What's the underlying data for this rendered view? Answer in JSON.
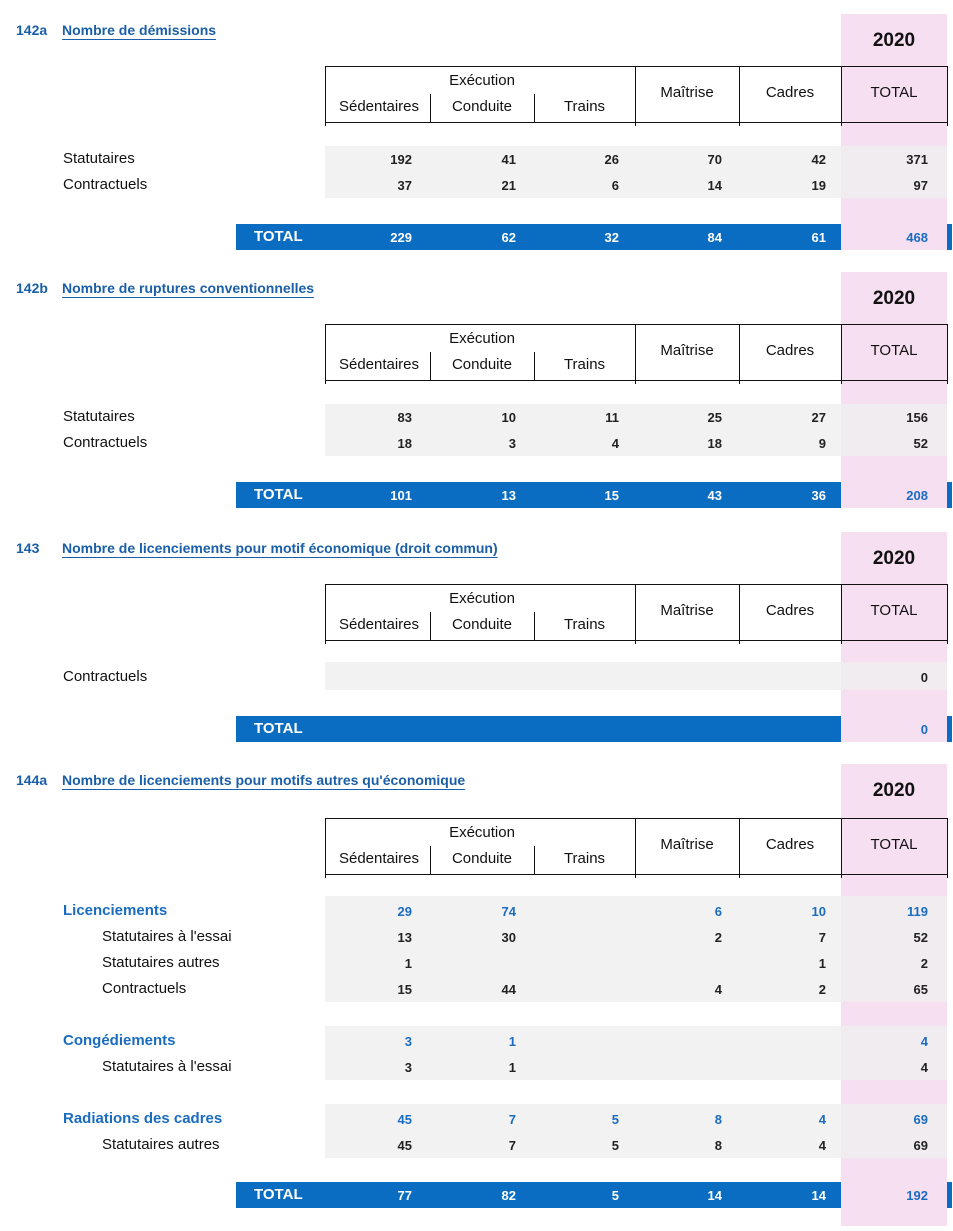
{
  "header_columns": {
    "execution": "Exécution",
    "sedentaires": "Sédentaires",
    "conduite": "Conduite",
    "trains": "Trains",
    "maitrise": "Maîtrise",
    "cadres": "Cadres",
    "total": "TOTAL"
  },
  "sections": [
    {
      "code": "142a",
      "title": "Nombre de démissions",
      "year": "2020",
      "rows": [
        {
          "label": "Statutaires",
          "values": [
            "192",
            "41",
            "26",
            "70",
            "42"
          ],
          "total": "371"
        },
        {
          "label": "Contractuels",
          "values": [
            "37",
            "21",
            "6",
            "14",
            "19"
          ],
          "total": "97"
        }
      ],
      "total_row": {
        "label": "TOTAL",
        "values": [
          "229",
          "62",
          "32",
          "84",
          "61"
        ],
        "total": "468"
      }
    },
    {
      "code": "142b",
      "title": "Nombre de ruptures conventionnelles",
      "year": "2020",
      "rows": [
        {
          "label": "Statutaires",
          "values": [
            "83",
            "10",
            "11",
            "25",
            "27"
          ],
          "total": "156"
        },
        {
          "label": "Contractuels",
          "values": [
            "18",
            "3",
            "4",
            "18",
            "9"
          ],
          "total": "52"
        }
      ],
      "total_row": {
        "label": "TOTAL",
        "values": [
          "101",
          "13",
          "15",
          "43",
          "36"
        ],
        "total": "208"
      }
    },
    {
      "code": "143",
      "title": "Nombre de licenciements pour motif économique (droit commun)",
      "year": "2020",
      "rows": [
        {
          "label": "Contractuels",
          "values": [
            "",
            "",
            "",
            "",
            ""
          ],
          "total": "0"
        }
      ],
      "total_row": {
        "label": "TOTAL",
        "values": [
          "",
          "",
          "",
          "",
          ""
        ],
        "total": "0"
      }
    },
    {
      "code": "144a",
      "title": "Nombre de licenciements pour motifs autres qu'économique",
      "year": "2020",
      "groups": [
        {
          "label": "Licenciements",
          "values": [
            "29",
            "74",
            "",
            "6",
            "10"
          ],
          "total": "119",
          "rows": [
            {
              "label": "Statutaires à l'essai",
              "values": [
                "13",
                "30",
                "",
                "2",
                "7"
              ],
              "total": "52"
            },
            {
              "label": "Statutaires autres",
              "values": [
                "1",
                "",
                "",
                "",
                "1"
              ],
              "total": "2"
            },
            {
              "label": "Contractuels",
              "values": [
                "15",
                "44",
                "",
                "4",
                "2"
              ],
              "total": "65"
            }
          ]
        },
        {
          "label": "Congédiements",
          "values": [
            "3",
            "1",
            "",
            "",
            ""
          ],
          "total": "4",
          "rows": [
            {
              "label": "Statutaires à l'essai",
              "values": [
                "3",
                "1",
                "",
                "",
                ""
              ],
              "total": "4"
            }
          ]
        },
        {
          "label": "Radiations des cadres",
          "values": [
            "45",
            "7",
            "5",
            "8",
            "4"
          ],
          "total": "69",
          "rows": [
            {
              "label": "Statutaires autres",
              "values": [
                "45",
                "7",
                "5",
                "8",
                "4"
              ],
              "total": "69"
            }
          ]
        }
      ],
      "total_row": {
        "label": "TOTAL",
        "values": [
          "77",
          "82",
          "5",
          "14",
          "14"
        ],
        "total": "192"
      }
    }
  ]
}
